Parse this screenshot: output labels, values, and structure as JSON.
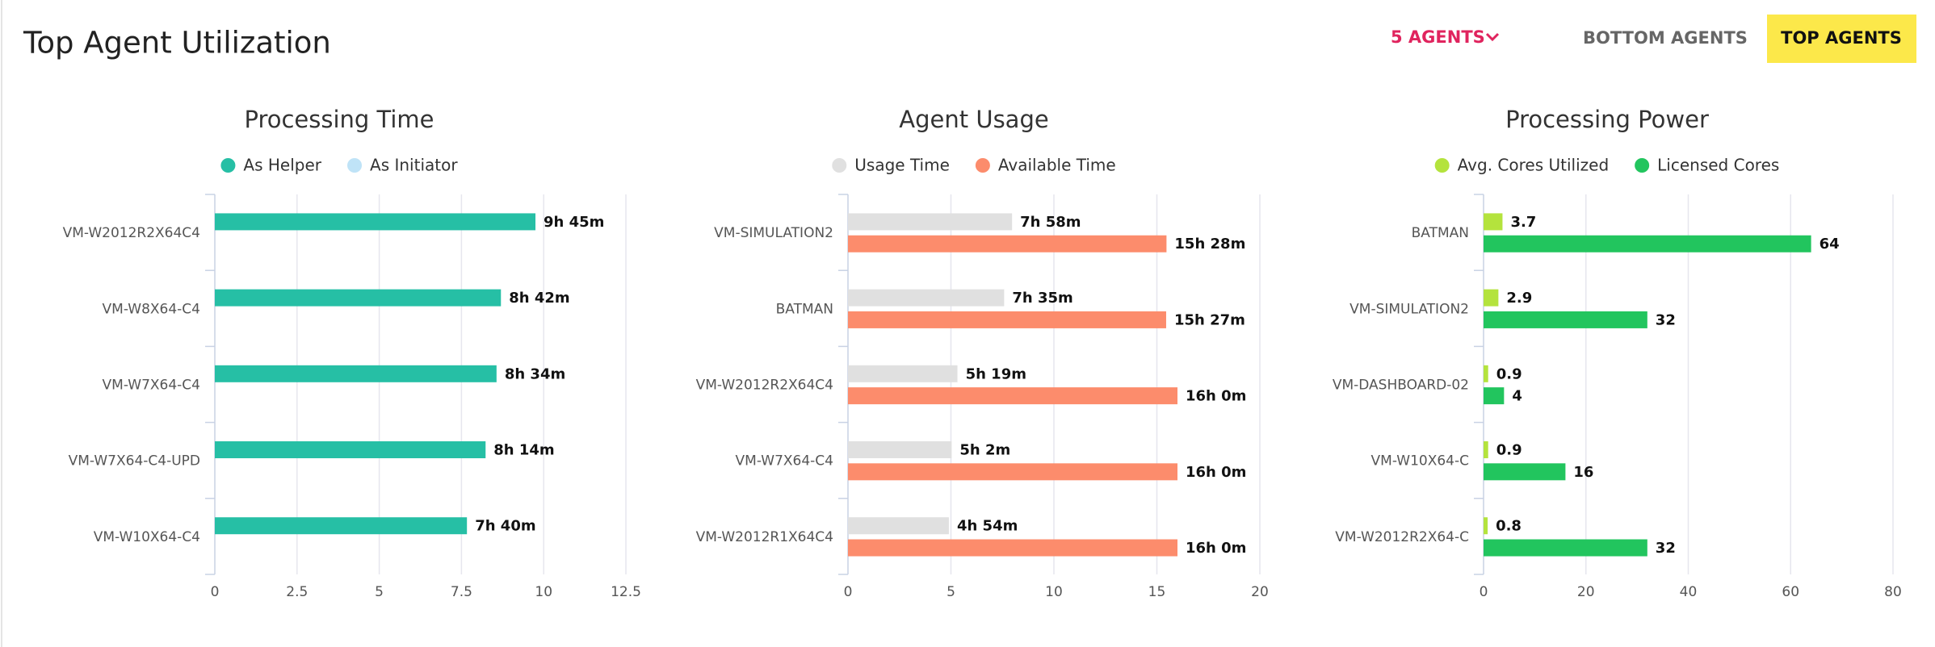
{
  "header": {
    "title": "Top Agent Utilization",
    "buttons": [
      "5 AGENTS",
      "BOTTOM AGENTS",
      "TOP AGENTS"
    ]
  },
  "chart_data": [
    {
      "type": "bar",
      "title": "Processing Time",
      "categories": [
        "VM-W2012R2X64C4",
        "VM-W8X64-C4",
        "VM-W7X64-C4",
        "VM-W7X64-C4-UPD",
        "VM-W10X64-C4"
      ],
      "series": [
        {
          "name": "As Helper",
          "color": "#26bfa5",
          "values": [
            9.75,
            8.7,
            8.5667,
            8.2333,
            7.6667
          ],
          "value_labels": [
            "9h 45m",
            "8h 42m",
            "8h 34m",
            "8h 14m",
            "7h 40m"
          ]
        },
        {
          "name": "As Initiator",
          "color": "#bfe3f7",
          "values": [
            0,
            0,
            0,
            0,
            0
          ],
          "data_labels": false
        }
      ],
      "xlim": [
        0,
        12.5
      ],
      "xticks": [
        0,
        2.5,
        5,
        7.5,
        10,
        12.5
      ],
      "grid": true
    },
    {
      "type": "bar",
      "title": "Agent Usage",
      "categories": [
        "VM-SIMULATION2",
        "BATMAN",
        "VM-W2012R2X64C4",
        "VM-W7X64-C4",
        "VM-W2012R1X64C4"
      ],
      "series": [
        {
          "name": "Usage Time",
          "color": "#e0e0e0",
          "values": [
            7.9667,
            7.5833,
            5.3167,
            5.0333,
            4.9
          ],
          "value_labels": [
            "7h 58m",
            "7h 35m",
            "5h 19m",
            "5h 2m",
            "4h 54m"
          ]
        },
        {
          "name": "Available Time",
          "color": "#fc8c6c",
          "values": [
            15.4667,
            15.45,
            16,
            16,
            16
          ],
          "value_labels": [
            "15h 28m",
            "15h 27m",
            "16h 0m",
            "16h 0m",
            "16h 0m"
          ]
        }
      ],
      "xlim": [
        0,
        20
      ],
      "xticks": [
        0,
        5,
        10,
        15,
        20
      ],
      "grid": true
    },
    {
      "type": "bar",
      "title": "Processing Power",
      "categories": [
        "BATMAN",
        "VM-SIMULATION2",
        "VM-DASHBOARD-02",
        "VM-W10X64-C",
        "VM-W2012R2X64-C"
      ],
      "series": [
        {
          "name": "Avg. Cores Utilized",
          "color": "#b4e33d",
          "values": [
            3.7,
            2.9,
            0.9,
            0.9,
            0.8
          ]
        },
        {
          "name": "Licensed Cores",
          "color": "#22c55e",
          "values": [
            64,
            32,
            4,
            16,
            32
          ]
        }
      ],
      "xlim": [
        0,
        80
      ],
      "xticks": [
        0,
        20,
        40,
        60,
        80
      ],
      "grid": true
    }
  ]
}
